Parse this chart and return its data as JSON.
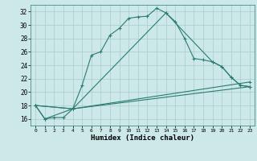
{
  "xlabel": "Humidex (Indice chaleur)",
  "ylabel": "",
  "bg_color": "#cce8e8",
  "grid_color": "#aacccc",
  "line_color": "#2a7d6d",
  "xlim": [
    -0.5,
    23.5
  ],
  "ylim": [
    15,
    33
  ],
  "xticks": [
    0,
    1,
    2,
    3,
    4,
    5,
    6,
    7,
    8,
    9,
    10,
    11,
    12,
    13,
    14,
    15,
    16,
    17,
    18,
    19,
    20,
    21,
    22,
    23
  ],
  "yticks": [
    16,
    18,
    20,
    22,
    24,
    26,
    28,
    30,
    32
  ],
  "line1_x": [
    0,
    1,
    2,
    3,
    4,
    5,
    6,
    7,
    8,
    9,
    10,
    11,
    12,
    13,
    14,
    15,
    16,
    17,
    18,
    19,
    20,
    21,
    22,
    23
  ],
  "line1_y": [
    18,
    16,
    16.2,
    16.2,
    17.5,
    21,
    25.5,
    26,
    28.5,
    29.5,
    31,
    31.2,
    31.3,
    32.5,
    31.8,
    30.5,
    28,
    25,
    24.8,
    24.5,
    23.8,
    22.2,
    21.0,
    20.8
  ],
  "line2_x": [
    0,
    1,
    4,
    14,
    19,
    20,
    21,
    22,
    23
  ],
  "line2_y": [
    18,
    16,
    17.5,
    31.8,
    24.5,
    23.8,
    22.2,
    21.0,
    20.8
  ],
  "line3_x": [
    0,
    4,
    23
  ],
  "line3_y": [
    18,
    17.5,
    20.8
  ],
  "line4_x": [
    0,
    4,
    23
  ],
  "line4_y": [
    18,
    17.5,
    21.5
  ],
  "marker": "+"
}
